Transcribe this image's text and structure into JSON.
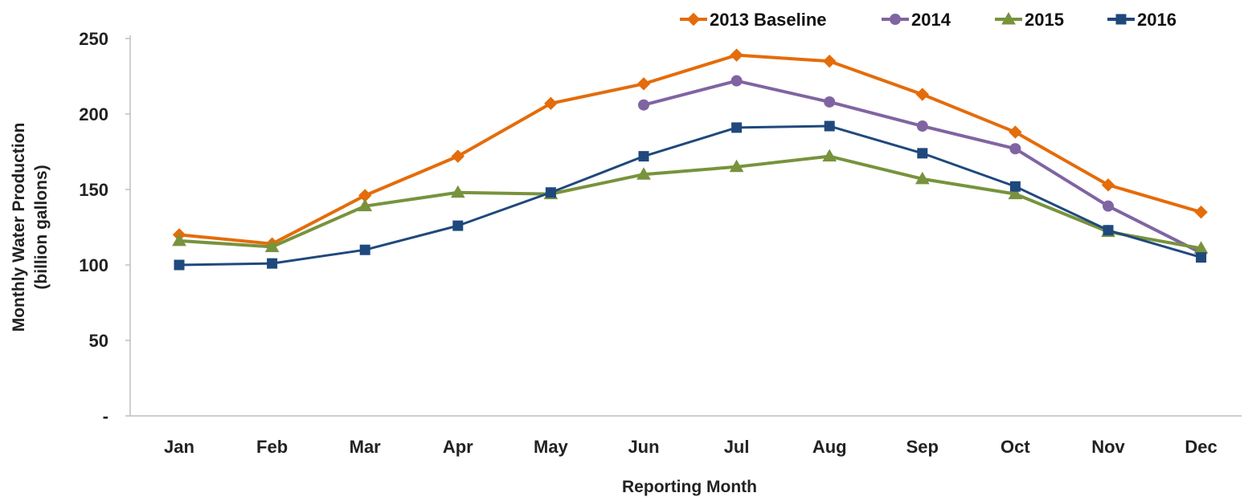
{
  "chart_data": {
    "type": "line",
    "categories": [
      "Jan",
      "Feb",
      "Mar",
      "Apr",
      "May",
      "Jun",
      "Jul",
      "Aug",
      "Sep",
      "Oct",
      "Nov",
      "Dec"
    ],
    "ylabel_line1": "Monthly Water Production",
    "ylabel_line2": "(billion gallons)",
    "xlabel": "Reporting Month",
    "ylim": [
      0,
      250
    ],
    "yticks": [
      0,
      50,
      100,
      150,
      200,
      250
    ],
    "ytick_labels": [
      "-",
      "50",
      "100",
      "150",
      "200",
      "250"
    ],
    "legend_position": "top-right",
    "series": [
      {
        "name": "2013 Baseline",
        "color": "#E46C0A",
        "marker": "diamond",
        "values": [
          120,
          114,
          146,
          172,
          207,
          220,
          239,
          235,
          213,
          188,
          153,
          135
        ]
      },
      {
        "name": "2014",
        "color": "#8064A2",
        "marker": "circle",
        "values": [
          null,
          null,
          null,
          null,
          null,
          206,
          222,
          208,
          192,
          177,
          139,
          108
        ]
      },
      {
        "name": "2015",
        "color": "#77933C",
        "marker": "triangle",
        "values": [
          116,
          112,
          139,
          148,
          147,
          160,
          165,
          172,
          157,
          147,
          122,
          111
        ]
      },
      {
        "name": "2016",
        "color": "#1F497D",
        "marker": "square",
        "values": [
          100,
          101,
          110,
          126,
          148,
          172,
          191,
          192,
          174,
          152,
          123,
          105
        ]
      }
    ]
  }
}
